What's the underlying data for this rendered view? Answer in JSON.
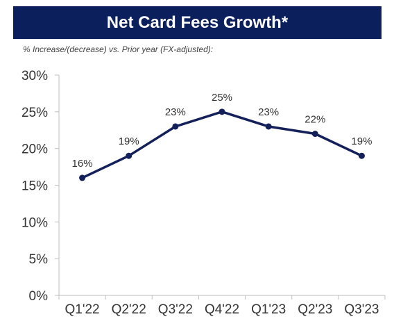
{
  "header": {
    "title": "Net Card Fees Growth*",
    "subtitle": "% Increase/(decrease) vs. Prior year (FX-adjusted):"
  },
  "colors": {
    "title_bar": "#0a1f5c",
    "line": "#14205a",
    "axis": "#bfbfbf",
    "text": "#333333"
  },
  "chart_data": {
    "type": "line",
    "categories": [
      "Q1'22",
      "Q2'22",
      "Q3'22",
      "Q4'22",
      "Q1'23",
      "Q2'23",
      "Q3'23"
    ],
    "series": [
      {
        "values": [
          16,
          19,
          23,
          25,
          23,
          22,
          19
        ]
      }
    ],
    "data_labels": [
      "16%",
      "19%",
      "23%",
      "25%",
      "23%",
      "22%",
      "19%"
    ],
    "y_ticks": [
      0,
      5,
      10,
      15,
      20,
      25,
      30
    ],
    "y_tick_labels": [
      "0%",
      "5%",
      "10%",
      "15%",
      "20%",
      "25%",
      "30%"
    ],
    "ylim": [
      0,
      30
    ],
    "grid": false,
    "legend": "none"
  }
}
